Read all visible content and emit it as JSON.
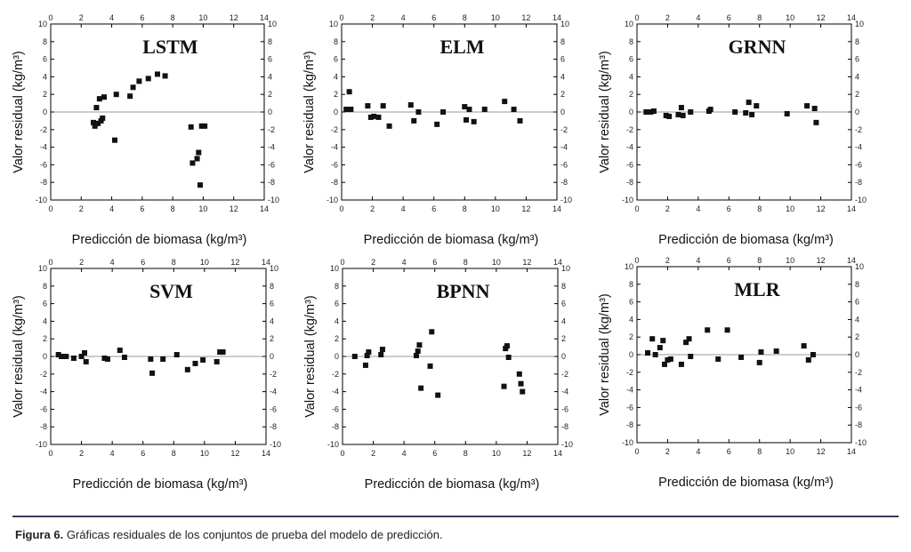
{
  "caption": {
    "label": "Figura 6.",
    "text": "Gráficas residuales de los conjuntos de prueba del modelo de predicción."
  },
  "axes": {
    "xlabel": "Predicción de biomasa (kg/m³)",
    "ylabel": "Valor residual (kg/m³)",
    "xlim": [
      0,
      14
    ],
    "ylim": [
      -10,
      10
    ],
    "xticks": [
      "0",
      "2",
      "4",
      "6",
      "8",
      "10",
      "12",
      "14"
    ],
    "yticks": [
      "10",
      "8",
      "6",
      "4",
      "2",
      "0",
      "-2",
      "-4",
      "-6",
      "-8",
      "-10"
    ]
  },
  "colors": {
    "marker": "#111111",
    "zero_line": "#9a9a9a",
    "frame": "#000000"
  },
  "chart_data": [
    {
      "type": "scatter",
      "title": "LSTM",
      "x": [
        2.8,
        2.9,
        3.0,
        3.1,
        3.2,
        3.3,
        3.4,
        3.5,
        4.2,
        4.3,
        5.2,
        5.4,
        5.8,
        6.4,
        7.0,
        7.5,
        9.2,
        9.3,
        9.6,
        9.7,
        9.8,
        9.9,
        10.1
      ],
      "y": [
        -1.2,
        -1.6,
        0.5,
        -1.3,
        1.5,
        -1.0,
        -0.7,
        1.7,
        -3.2,
        2.0,
        1.8,
        2.8,
        3.5,
        3.8,
        4.3,
        4.1,
        -1.7,
        -5.8,
        -5.3,
        -4.6,
        -8.3,
        -1.6,
        -1.6
      ]
    },
    {
      "type": "scatter",
      "title": "ELM",
      "x": [
        0.3,
        0.5,
        0.6,
        1.7,
        1.9,
        2.1,
        2.4,
        2.7,
        3.1,
        4.5,
        4.7,
        5.0,
        6.2,
        6.6,
        8.0,
        8.1,
        8.3,
        8.6,
        9.3,
        10.6,
        11.2,
        11.6
      ],
      "y": [
        0.3,
        2.3,
        0.3,
        0.7,
        -0.6,
        -0.5,
        -0.6,
        0.7,
        -1.6,
        0.8,
        -1.0,
        0.0,
        -1.4,
        0.0,
        0.6,
        -0.9,
        0.3,
        -1.1,
        0.3,
        1.2,
        0.3,
        -1.0
      ]
    },
    {
      "type": "scatter",
      "title": "GRNN",
      "x": [
        0.6,
        0.9,
        1.1,
        1.9,
        2.1,
        2.7,
        2.9,
        3.0,
        3.5,
        4.7,
        4.8,
        6.4,
        7.1,
        7.3,
        7.5,
        7.8,
        9.8,
        11.1,
        11.6,
        11.7
      ],
      "y": [
        0.0,
        0.0,
        0.1,
        -0.4,
        -0.5,
        -0.3,
        0.5,
        -0.4,
        0.0,
        0.1,
        0.3,
        0.0,
        -0.1,
        1.1,
        -0.3,
        0.7,
        -0.2,
        0.7,
        0.4,
        -1.2
      ]
    },
    {
      "type": "scatter",
      "title": "SVM",
      "x": [
        0.5,
        0.7,
        1.0,
        1.5,
        2.0,
        2.2,
        2.3,
        3.5,
        3.7,
        4.5,
        4.8,
        6.5,
        6.6,
        7.3,
        8.2,
        8.9,
        9.4,
        9.9,
        10.8,
        11.0,
        11.2
      ],
      "y": [
        0.2,
        0.0,
        0.0,
        -0.2,
        0.0,
        0.4,
        -0.6,
        -0.2,
        -0.3,
        0.7,
        -0.1,
        -0.3,
        -1.9,
        -0.3,
        0.2,
        -1.5,
        -0.8,
        -0.4,
        -0.6,
        0.5,
        0.5
      ]
    },
    {
      "type": "scatter",
      "title": "BPNN",
      "x": [
        0.8,
        1.5,
        1.6,
        1.7,
        2.5,
        2.6,
        4.8,
        4.9,
        5.0,
        5.1,
        5.7,
        5.8,
        6.2,
        10.5,
        10.6,
        10.7,
        10.8,
        11.5,
        11.6,
        11.7
      ],
      "y": [
        0.0,
        -1.0,
        0.1,
        0.5,
        0.2,
        0.8,
        0.1,
        0.6,
        1.3,
        -3.6,
        -1.1,
        2.8,
        -4.4,
        -3.4,
        0.9,
        1.2,
        -0.1,
        -2.0,
        -3.1,
        -4.0
      ]
    },
    {
      "type": "scatter",
      "title": "MLR",
      "x": [
        0.7,
        1.0,
        1.2,
        1.5,
        1.7,
        1.8,
        2.0,
        2.2,
        2.9,
        3.2,
        3.4,
        3.5,
        4.6,
        5.3,
        5.9,
        6.8,
        8.0,
        8.1,
        9.1,
        10.9,
        11.2,
        11.5
      ],
      "y": [
        0.2,
        1.8,
        0.0,
        0.8,
        1.6,
        -1.1,
        -0.6,
        -0.5,
        -1.1,
        1.4,
        1.8,
        -0.2,
        2.8,
        -0.5,
        2.8,
        -0.3,
        -0.9,
        0.3,
        0.4,
        1.0,
        -0.6,
        0.0
      ]
    }
  ]
}
